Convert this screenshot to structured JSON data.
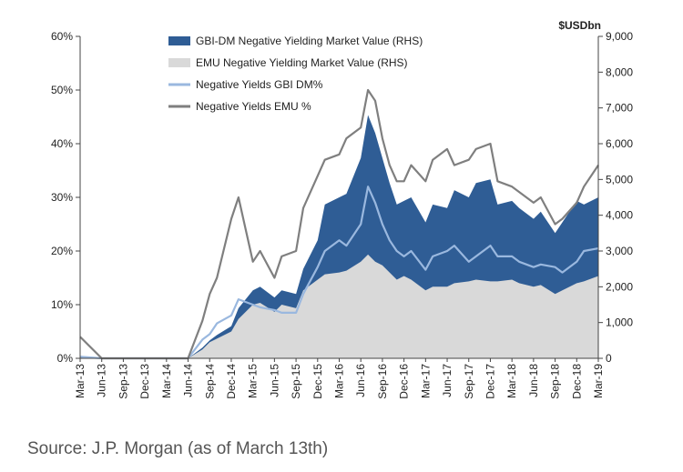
{
  "chart_data": {
    "type": "area",
    "left_axis": {
      "ylim": [
        0,
        60
      ],
      "ticks": [
        "0%",
        "10%",
        "20%",
        "30%",
        "40%",
        "50%",
        "60%"
      ]
    },
    "right_axis": {
      "ylim": [
        0,
        9000
      ],
      "unit_label": "$USDbn",
      "ticks": [
        "0",
        "1,000",
        "2,000",
        "3,000",
        "4,000",
        "5,000",
        "6,000",
        "7,000",
        "8,000",
        "9,000"
      ]
    },
    "x_ticks": [
      "Mar-13",
      "Jun-13",
      "Sep-13",
      "Dec-13",
      "Mar-14",
      "Jun-14",
      "Sep-14",
      "Dec-14",
      "Mar-15",
      "Jun-15",
      "Sep-15",
      "Dec-15",
      "Mar-16",
      "Jun-16",
      "Sep-16",
      "Dec-16",
      "Mar-17",
      "Jun-17",
      "Sep-17",
      "Dec-17",
      "Mar-18",
      "Jun-18",
      "Sep-18",
      "Dec-18",
      "Mar-19"
    ],
    "grid": false,
    "legend_position": "top-center",
    "colors": {
      "gbi_mv": "#2f5d95",
      "emu_mv": "#d9d9d9",
      "gbi_pct": "#9ab8df",
      "emu_pct": "#7f7f7f"
    },
    "series": [
      {
        "name": "GBI-DM Negative Yielding Market Value  (RHS)",
        "axis": "right",
        "style": "area",
        "x": [
          "Mar-13",
          "Jun-13",
          "Sep-13",
          "Dec-13",
          "Mar-14",
          "Jun-14",
          "Aug-14",
          "Sep-14",
          "Oct-14",
          "Dec-14",
          "Jan-15",
          "Mar-15",
          "Apr-15",
          "Jun-15",
          "Jul-15",
          "Sep-15",
          "Oct-15",
          "Dec-15",
          "Jan-16",
          "Mar-16",
          "Apr-16",
          "Jun-16",
          "Jul-16",
          "Aug-16",
          "Sep-16",
          "Oct-16",
          "Nov-16",
          "Dec-16",
          "Jan-17",
          "Mar-17",
          "Apr-17",
          "Jun-17",
          "Jul-17",
          "Sep-17",
          "Oct-17",
          "Dec-17",
          "Jan-18",
          "Mar-18",
          "Apr-18",
          "Jun-18",
          "Jul-18",
          "Sep-18",
          "Oct-18",
          "Dec-18",
          "Jan-19",
          "Mar-19"
        ],
        "values": [
          50,
          0,
          0,
          0,
          0,
          0,
          300,
          500,
          650,
          900,
          1400,
          1900,
          2000,
          1700,
          1900,
          1800,
          2500,
          3300,
          4300,
          4500,
          4600,
          5600,
          6800,
          6300,
          5600,
          4900,
          4300,
          4400,
          4500,
          3800,
          4300,
          4200,
          4700,
          4500,
          4900,
          5000,
          4300,
          4400,
          4200,
          3900,
          4100,
          3500,
          3800,
          4400,
          4300,
          4500
        ]
      },
      {
        "name": "EMU Negative Yielding Market Value (RHS)",
        "axis": "right",
        "style": "area",
        "x": [
          "Mar-13",
          "Jun-13",
          "Sep-13",
          "Dec-13",
          "Mar-14",
          "Jun-14",
          "Aug-14",
          "Sep-14",
          "Oct-14",
          "Dec-14",
          "Jan-15",
          "Mar-15",
          "Apr-15",
          "Jun-15",
          "Jul-15",
          "Sep-15",
          "Oct-15",
          "Dec-15",
          "Jan-16",
          "Mar-16",
          "Apr-16",
          "Jun-16",
          "Jul-16",
          "Aug-16",
          "Sep-16",
          "Oct-16",
          "Nov-16",
          "Dec-16",
          "Jan-17",
          "Mar-17",
          "Apr-17",
          "Jun-17",
          "Jul-17",
          "Sep-17",
          "Oct-17",
          "Dec-17",
          "Jan-18",
          "Mar-18",
          "Apr-18",
          "Jun-18",
          "Jul-18",
          "Sep-18",
          "Oct-18",
          "Dec-18",
          "Jan-19",
          "Mar-19"
        ],
        "values": [
          20,
          0,
          0,
          0,
          0,
          0,
          250,
          450,
          550,
          750,
          1100,
          1500,
          1550,
          1300,
          1500,
          1400,
          1900,
          2200,
          2350,
          2400,
          2450,
          2700,
          2900,
          2700,
          2600,
          2400,
          2200,
          2300,
          2200,
          1900,
          2000,
          2000,
          2100,
          2150,
          2200,
          2150,
          2150,
          2200,
          2100,
          2000,
          2050,
          1800,
          1900,
          2100,
          2150,
          2300
        ]
      },
      {
        "name": "Negative Yields GBI DM%",
        "axis": "left",
        "style": "line",
        "x": [
          "Mar-13",
          "Jun-13",
          "Sep-13",
          "Dec-13",
          "Mar-14",
          "Jun-14",
          "Aug-14",
          "Sep-14",
          "Oct-14",
          "Dec-14",
          "Jan-15",
          "Mar-15",
          "Apr-15",
          "Jun-15",
          "Jul-15",
          "Sep-15",
          "Oct-15",
          "Dec-15",
          "Jan-16",
          "Mar-16",
          "Apr-16",
          "Jun-16",
          "Jul-16",
          "Aug-16",
          "Sep-16",
          "Oct-16",
          "Nov-16",
          "Dec-16",
          "Jan-17",
          "Mar-17",
          "Apr-17",
          "Jun-17",
          "Jul-17",
          "Sep-17",
          "Oct-17",
          "Dec-17",
          "Jan-18",
          "Mar-18",
          "Apr-18",
          "Jun-18",
          "Jul-18",
          "Sep-18",
          "Oct-18",
          "Dec-18",
          "Jan-19",
          "Mar-19"
        ],
        "values": [
          0.3,
          0,
          0,
          0,
          0,
          0,
          3.5,
          4.5,
          6.5,
          8,
          11,
          10,
          9.5,
          9,
          8.5,
          8.5,
          12,
          17,
          20,
          22,
          21,
          25,
          32,
          29,
          25,
          22,
          20,
          19,
          20,
          16.5,
          19,
          20,
          21,
          18,
          19,
          21,
          19,
          19,
          18,
          17,
          17.5,
          17,
          16,
          18,
          20,
          20.5
        ]
      },
      {
        "name": "Negative Yields EMU %",
        "axis": "left",
        "style": "line",
        "x": [
          "Mar-13",
          "Jun-13",
          "Sep-13",
          "Dec-13",
          "Mar-14",
          "Jun-14",
          "Aug-14",
          "Sep-14",
          "Oct-14",
          "Dec-14",
          "Jan-15",
          "Mar-15",
          "Apr-15",
          "Jun-15",
          "Jul-15",
          "Sep-15",
          "Oct-15",
          "Dec-15",
          "Jan-16",
          "Mar-16",
          "Apr-16",
          "Jun-16",
          "Jul-16",
          "Aug-16",
          "Sep-16",
          "Oct-16",
          "Nov-16",
          "Dec-16",
          "Jan-17",
          "Mar-17",
          "Apr-17",
          "Jun-17",
          "Jul-17",
          "Sep-17",
          "Oct-17",
          "Dec-17",
          "Jan-18",
          "Mar-18",
          "Apr-18",
          "Jun-18",
          "Jul-18",
          "Sep-18",
          "Oct-18",
          "Dec-18",
          "Jan-19",
          "Mar-19"
        ],
        "values": [
          4,
          0,
          0,
          0,
          0,
          0,
          7,
          12,
          15,
          26,
          30,
          18,
          20,
          15,
          19,
          20,
          28,
          34,
          37,
          38,
          41,
          43,
          50,
          48,
          41,
          36,
          33,
          33,
          36,
          33,
          37,
          39,
          36,
          37,
          39,
          40,
          33,
          32,
          31,
          29,
          30,
          25,
          26,
          29,
          32,
          36
        ]
      }
    ]
  },
  "source_note": "Source: J.P. Morgan (as of March 13th)"
}
